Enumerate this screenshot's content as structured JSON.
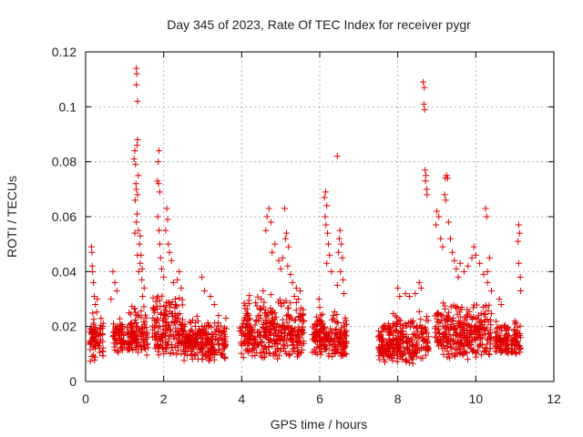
{
  "chart_data": {
    "type": "scatter",
    "title": "Day 345 of 2023, Rate Of TEC Index for receiver pygr",
    "xlabel": "GPS time / hours",
    "ylabel": "ROTI / TECUs",
    "xlim": [
      0,
      12
    ],
    "ylim": [
      0,
      0.12
    ],
    "xticks": [
      "0",
      "2",
      "4",
      "6",
      "8",
      "10",
      "12"
    ],
    "yticks": [
      "0",
      "0.02",
      "0.04",
      "0.06",
      "0.08",
      "0.1",
      "0.12"
    ],
    "grid": true,
    "marker": "+",
    "color": "#e00000",
    "series": [
      {
        "name": "ROTI",
        "points": [
          [
            0.15,
            0.049
          ],
          [
            0.16,
            0.047
          ],
          [
            0.17,
            0.042
          ],
          [
            0.18,
            0.04
          ],
          [
            0.2,
            0.036
          ],
          [
            0.22,
            0.031
          ],
          [
            0.25,
            0.028
          ],
          [
            0.3,
            0.03
          ],
          [
            1.24,
            0.081
          ],
          [
            1.26,
            0.084
          ],
          [
            1.28,
            0.079
          ],
          [
            1.3,
            0.114
          ],
          [
            1.31,
            0.112
          ],
          [
            1.3,
            0.108
          ],
          [
            1.33,
            0.102
          ],
          [
            1.33,
            0.088
          ],
          [
            1.32,
            0.086
          ],
          [
            1.35,
            0.075
          ],
          [
            1.29,
            0.072
          ],
          [
            1.3,
            0.07
          ],
          [
            1.33,
            0.068
          ],
          [
            1.27,
            0.066
          ],
          [
            1.32,
            0.061
          ],
          [
            1.3,
            0.058
          ],
          [
            1.35,
            0.055
          ],
          [
            1.26,
            0.054
          ],
          [
            1.4,
            0.053
          ],
          [
            1.38,
            0.05
          ],
          [
            1.42,
            0.046
          ],
          [
            1.4,
            0.043
          ],
          [
            1.45,
            0.041
          ],
          [
            1.44,
            0.037
          ],
          [
            1.5,
            0.034
          ],
          [
            1.46,
            0.031
          ],
          [
            1.33,
            0.046
          ],
          [
            1.36,
            0.04
          ],
          [
            1.88,
            0.084
          ],
          [
            1.86,
            0.08
          ],
          [
            1.84,
            0.073
          ],
          [
            1.87,
            0.072
          ],
          [
            1.9,
            0.069
          ],
          [
            1.85,
            0.06
          ],
          [
            1.88,
            0.055
          ],
          [
            1.9,
            0.05
          ],
          [
            1.92,
            0.045
          ],
          [
            1.95,
            0.041
          ],
          [
            2.08,
            0.063
          ],
          [
            2.1,
            0.059
          ],
          [
            2.05,
            0.055
          ],
          [
            2.12,
            0.05
          ],
          [
            2.15,
            0.047
          ],
          [
            2.2,
            0.044
          ],
          [
            2.0,
            0.038
          ],
          [
            2.25,
            0.036
          ],
          [
            2.4,
            0.04
          ],
          [
            2.35,
            0.037
          ],
          [
            2.45,
            0.034
          ],
          [
            2.3,
            0.03
          ],
          [
            0.7,
            0.04
          ],
          [
            0.75,
            0.036
          ],
          [
            0.8,
            0.033
          ],
          [
            0.65,
            0.03
          ],
          [
            2.98,
            0.038
          ],
          [
            3.05,
            0.033
          ],
          [
            3.2,
            0.031
          ],
          [
            3.3,
            0.028
          ],
          [
            4.65,
            0.06
          ],
          [
            4.7,
            0.063
          ],
          [
            4.75,
            0.058
          ],
          [
            4.62,
            0.055
          ],
          [
            4.85,
            0.05
          ],
          [
            4.78,
            0.047
          ],
          [
            4.95,
            0.044
          ],
          [
            5.0,
            0.041
          ],
          [
            5.05,
            0.045
          ],
          [
            5.15,
            0.054
          ],
          [
            5.12,
            0.052
          ],
          [
            5.2,
            0.049
          ],
          [
            5.1,
            0.063
          ],
          [
            5.18,
            0.042
          ],
          [
            5.25,
            0.039
          ],
          [
            5.3,
            0.036
          ],
          [
            4.55,
            0.033
          ],
          [
            4.5,
            0.03
          ],
          [
            5.4,
            0.034
          ],
          [
            5.35,
            0.031
          ],
          [
            5.5,
            0.033
          ],
          [
            5.45,
            0.03
          ],
          [
            6.12,
            0.067
          ],
          [
            6.15,
            0.069
          ],
          [
            6.18,
            0.064
          ],
          [
            6.14,
            0.06
          ],
          [
            6.16,
            0.057
          ],
          [
            6.2,
            0.054
          ],
          [
            6.22,
            0.05
          ],
          [
            6.25,
            0.046
          ],
          [
            6.18,
            0.043
          ],
          [
            6.3,
            0.04
          ],
          [
            6.45,
            0.082
          ],
          [
            6.52,
            0.055
          ],
          [
            6.5,
            0.052
          ],
          [
            6.55,
            0.05
          ],
          [
            6.48,
            0.047
          ],
          [
            6.58,
            0.045
          ],
          [
            6.53,
            0.04
          ],
          [
            6.6,
            0.037
          ],
          [
            6.45,
            0.035
          ],
          [
            6.62,
            0.032
          ],
          [
            5.98,
            0.03
          ],
          [
            6.0,
            0.027
          ],
          [
            8.0,
            0.034
          ],
          [
            8.05,
            0.031
          ],
          [
            8.2,
            0.032
          ],
          [
            8.3,
            0.031
          ],
          [
            8.65,
            0.109
          ],
          [
            8.68,
            0.107
          ],
          [
            8.67,
            0.101
          ],
          [
            8.69,
            0.099
          ],
          [
            8.7,
            0.077
          ],
          [
            8.72,
            0.075
          ],
          [
            8.71,
            0.073
          ],
          [
            8.74,
            0.07
          ],
          [
            8.75,
            0.068
          ],
          [
            8.55,
            0.036
          ],
          [
            8.6,
            0.034
          ],
          [
            8.45,
            0.032
          ],
          [
            9.0,
            0.062
          ],
          [
            9.05,
            0.06
          ],
          [
            8.98,
            0.057
          ],
          [
            9.1,
            0.052
          ],
          [
            9.15,
            0.049
          ],
          [
            9.22,
            0.074
          ],
          [
            9.25,
            0.075
          ],
          [
            9.28,
            0.074
          ],
          [
            9.2,
            0.068
          ],
          [
            9.23,
            0.066
          ],
          [
            9.3,
            0.058
          ],
          [
            9.35,
            0.052
          ],
          [
            9.4,
            0.047
          ],
          [
            9.45,
            0.044
          ],
          [
            9.5,
            0.041
          ],
          [
            9.55,
            0.038
          ],
          [
            9.6,
            0.043
          ],
          [
            9.7,
            0.04
          ],
          [
            9.8,
            0.042
          ],
          [
            9.9,
            0.045
          ],
          [
            9.95,
            0.049
          ],
          [
            10.0,
            0.046
          ],
          [
            10.1,
            0.043
          ],
          [
            10.2,
            0.039
          ],
          [
            10.25,
            0.063
          ],
          [
            10.28,
            0.06
          ],
          [
            10.3,
            0.04
          ],
          [
            10.35,
            0.045
          ],
          [
            10.3,
            0.036
          ],
          [
            10.4,
            0.033
          ],
          [
            10.6,
            0.03
          ],
          [
            10.65,
            0.028
          ],
          [
            11.1,
            0.057
          ],
          [
            11.12,
            0.054
          ],
          [
            11.08,
            0.051
          ],
          [
            11.1,
            0.043
          ],
          [
            11.14,
            0.038
          ],
          [
            11.15,
            0.033
          ]
        ],
        "dense_clusters": [
          {
            "x": [
              0.1,
              0.45
            ],
            "y": [
              0.004,
              0.026
            ]
          },
          {
            "x": [
              0.7,
              1.0
            ],
            "y": [
              0.008,
              0.025
            ]
          },
          {
            "x": [
              1.05,
              1.6
            ],
            "y": [
              0.006,
              0.028
            ]
          },
          {
            "x": [
              1.7,
              2.5
            ],
            "y": [
              0.005,
              0.034
            ]
          },
          {
            "x": [
              2.5,
              3.6
            ],
            "y": [
              0.004,
              0.025
            ]
          },
          {
            "x": [
              3.95,
              5.6
            ],
            "y": [
              0.004,
              0.032
            ]
          },
          {
            "x": [
              5.8,
              6.7
            ],
            "y": [
              0.006,
              0.026
            ]
          },
          {
            "x": [
              7.5,
              8.8
            ],
            "y": [
              0.003,
              0.026
            ]
          },
          {
            "x": [
              8.95,
              10.4
            ],
            "y": [
              0.004,
              0.03
            ]
          },
          {
            "x": [
              10.5,
              10.85
            ],
            "y": [
              0.008,
              0.022
            ]
          },
          {
            "x": [
              10.9,
              11.15
            ],
            "y": [
              0.006,
              0.024
            ]
          }
        ]
      }
    ]
  }
}
